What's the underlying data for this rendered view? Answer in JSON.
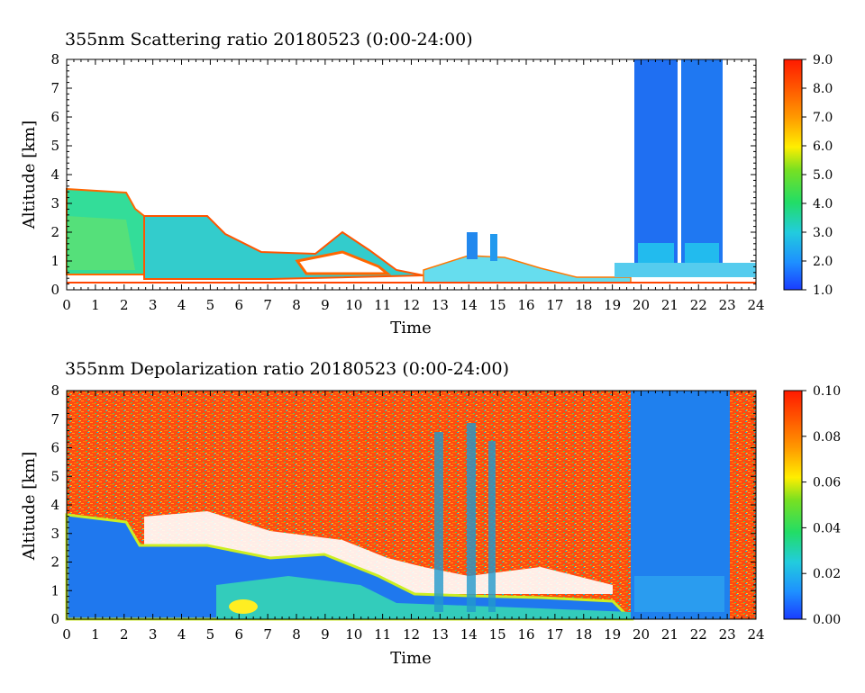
{
  "chart_data": [
    {
      "type": "heatmap",
      "title": "355nm Scattering ratio  20180523 (0:00-24:00)",
      "xlabel": "Time",
      "ylabel": "Altitude [km]",
      "xlim": [
        0,
        24
      ],
      "ylim": [
        0,
        8
      ],
      "x_ticks": [
        "0",
        "1",
        "2",
        "3",
        "4",
        "5",
        "6",
        "7",
        "8",
        "9",
        "10",
        "11",
        "12",
        "13",
        "14",
        "15",
        "16",
        "17",
        "18",
        "19",
        "20",
        "21",
        "22",
        "23",
        "24"
      ],
      "y_ticks": [
        "0",
        "1",
        "2",
        "3",
        "4",
        "5",
        "6",
        "7",
        "8"
      ],
      "colorbar": {
        "range": [
          1.0,
          9.0
        ],
        "ticks": [
          "1.0",
          "2.0",
          "3.0",
          "4.0",
          "5.0",
          "6.0",
          "7.0",
          "8.0",
          "9.0"
        ]
      }
    },
    {
      "type": "heatmap",
      "title": "355nm Depolarization ratio  20180523 (0:00-24:00)",
      "xlabel": "Time",
      "ylabel": "Altitude [km]",
      "xlim": [
        0,
        24
      ],
      "ylim": [
        0,
        8
      ],
      "x_ticks": [
        "0",
        "1",
        "2",
        "3",
        "4",
        "5",
        "6",
        "7",
        "8",
        "9",
        "10",
        "11",
        "12",
        "13",
        "14",
        "15",
        "16",
        "17",
        "18",
        "19",
        "20",
        "21",
        "22",
        "23",
        "24"
      ],
      "y_ticks": [
        "0",
        "1",
        "2",
        "3",
        "4",
        "5",
        "6",
        "7",
        "8"
      ],
      "colorbar": {
        "range": [
          0.0,
          0.1
        ],
        "ticks": [
          "0.00",
          "0.02",
          "0.04",
          "0.06",
          "0.08",
          "0.10"
        ]
      }
    }
  ]
}
